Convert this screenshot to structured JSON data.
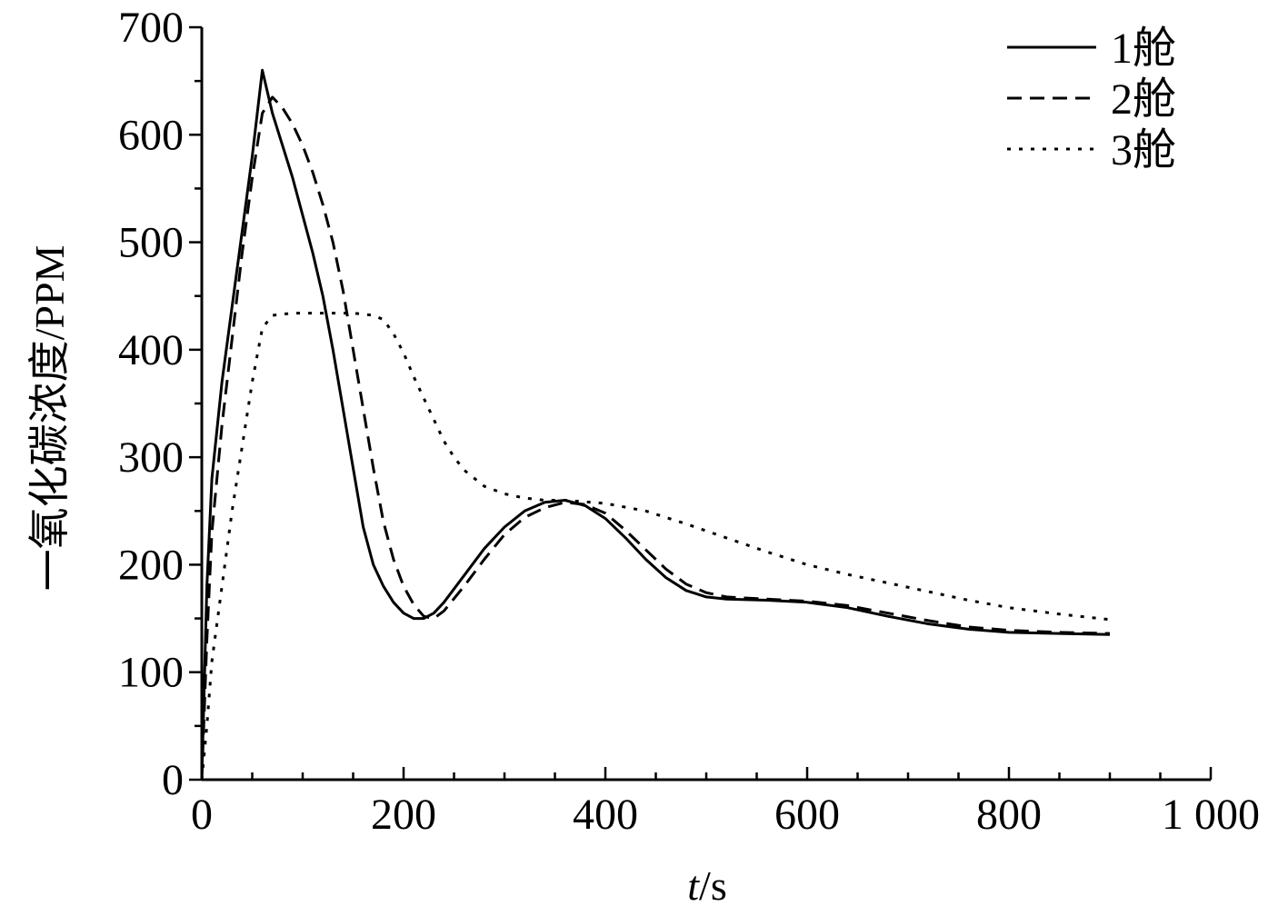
{
  "chart_data": {
    "type": "line",
    "title": "",
    "xlabel_italic": "t",
    "xlabel_rest": "/s",
    "ylabel": "一氧化碳浓度/PPM",
    "xlim": [
      0,
      1000
    ],
    "ylim": [
      0,
      700
    ],
    "x_ticks": [
      0,
      200,
      400,
      600,
      800,
      1000
    ],
    "x_tick_labels": [
      "0",
      "200",
      "400",
      "600",
      "800",
      "1 000"
    ],
    "y_ticks": [
      0,
      100,
      200,
      300,
      400,
      500,
      600,
      700
    ],
    "y_tick_labels": [
      "0",
      "100",
      "200",
      "300",
      "400",
      "500",
      "600",
      "700"
    ],
    "x_minor_step": 50,
    "y_minor_step": 50,
    "grid": false,
    "legend_position": "top-right",
    "series": [
      {
        "name": "1舱",
        "dash": "solid",
        "points": [
          [
            0,
            0
          ],
          [
            5,
            180
          ],
          [
            10,
            280
          ],
          [
            20,
            370
          ],
          [
            30,
            440
          ],
          [
            40,
            510
          ],
          [
            50,
            580
          ],
          [
            60,
            660
          ],
          [
            70,
            620
          ],
          [
            80,
            590
          ],
          [
            90,
            560
          ],
          [
            100,
            525
          ],
          [
            110,
            490
          ],
          [
            120,
            450
          ],
          [
            130,
            400
          ],
          [
            140,
            345
          ],
          [
            150,
            290
          ],
          [
            160,
            235
          ],
          [
            170,
            200
          ],
          [
            180,
            180
          ],
          [
            190,
            165
          ],
          [
            200,
            155
          ],
          [
            210,
            150
          ],
          [
            220,
            150
          ],
          [
            230,
            155
          ],
          [
            240,
            165
          ],
          [
            260,
            190
          ],
          [
            280,
            215
          ],
          [
            300,
            235
          ],
          [
            320,
            250
          ],
          [
            340,
            258
          ],
          [
            360,
            260
          ],
          [
            380,
            255
          ],
          [
            400,
            243
          ],
          [
            420,
            225
          ],
          [
            440,
            205
          ],
          [
            460,
            188
          ],
          [
            480,
            176
          ],
          [
            500,
            170
          ],
          [
            520,
            168
          ],
          [
            560,
            167
          ],
          [
            600,
            165
          ],
          [
            640,
            160
          ],
          [
            680,
            152
          ],
          [
            720,
            145
          ],
          [
            760,
            140
          ],
          [
            800,
            137
          ],
          [
            850,
            136
          ],
          [
            900,
            135
          ]
        ]
      },
      {
        "name": "2舱",
        "dash": "dashed",
        "points": [
          [
            0,
            0
          ],
          [
            5,
            130
          ],
          [
            10,
            230
          ],
          [
            20,
            330
          ],
          [
            30,
            410
          ],
          [
            40,
            490
          ],
          [
            50,
            560
          ],
          [
            60,
            620
          ],
          [
            70,
            635
          ],
          [
            80,
            625
          ],
          [
            90,
            610
          ],
          [
            100,
            590
          ],
          [
            110,
            565
          ],
          [
            120,
            535
          ],
          [
            130,
            500
          ],
          [
            140,
            455
          ],
          [
            150,
            400
          ],
          [
            160,
            345
          ],
          [
            170,
            290
          ],
          [
            180,
            240
          ],
          [
            190,
            205
          ],
          [
            200,
            180
          ],
          [
            210,
            163
          ],
          [
            220,
            152
          ],
          [
            230,
            150
          ],
          [
            240,
            157
          ],
          [
            260,
            180
          ],
          [
            280,
            205
          ],
          [
            300,
            228
          ],
          [
            320,
            244
          ],
          [
            340,
            253
          ],
          [
            360,
            258
          ],
          [
            380,
            256
          ],
          [
            400,
            248
          ],
          [
            420,
            232
          ],
          [
            440,
            214
          ],
          [
            460,
            196
          ],
          [
            480,
            182
          ],
          [
            500,
            174
          ],
          [
            520,
            170
          ],
          [
            560,
            168
          ],
          [
            600,
            166
          ],
          [
            640,
            162
          ],
          [
            680,
            155
          ],
          [
            720,
            148
          ],
          [
            760,
            142
          ],
          [
            800,
            139
          ],
          [
            850,
            137
          ],
          [
            900,
            136
          ]
        ]
      },
      {
        "name": "3舱",
        "dash": "dotted",
        "points": [
          [
            0,
            0
          ],
          [
            5,
            50
          ],
          [
            10,
            110
          ],
          [
            20,
            180
          ],
          [
            30,
            250
          ],
          [
            40,
            310
          ],
          [
            50,
            370
          ],
          [
            60,
            420
          ],
          [
            70,
            432
          ],
          [
            90,
            434
          ],
          [
            120,
            434
          ],
          [
            150,
            434
          ],
          [
            170,
            432
          ],
          [
            180,
            428
          ],
          [
            190,
            415
          ],
          [
            200,
            397
          ],
          [
            210,
            375
          ],
          [
            220,
            355
          ],
          [
            230,
            335
          ],
          [
            240,
            315
          ],
          [
            250,
            300
          ],
          [
            260,
            288
          ],
          [
            280,
            273
          ],
          [
            300,
            266
          ],
          [
            320,
            262
          ],
          [
            340,
            260
          ],
          [
            360,
            260
          ],
          [
            400,
            257
          ],
          [
            440,
            250
          ],
          [
            480,
            238
          ],
          [
            520,
            225
          ],
          [
            560,
            212
          ],
          [
            600,
            200
          ],
          [
            640,
            191
          ],
          [
            680,
            183
          ],
          [
            720,
            175
          ],
          [
            760,
            167
          ],
          [
            800,
            160
          ],
          [
            850,
            154
          ],
          [
            900,
            149
          ]
        ]
      }
    ]
  }
}
